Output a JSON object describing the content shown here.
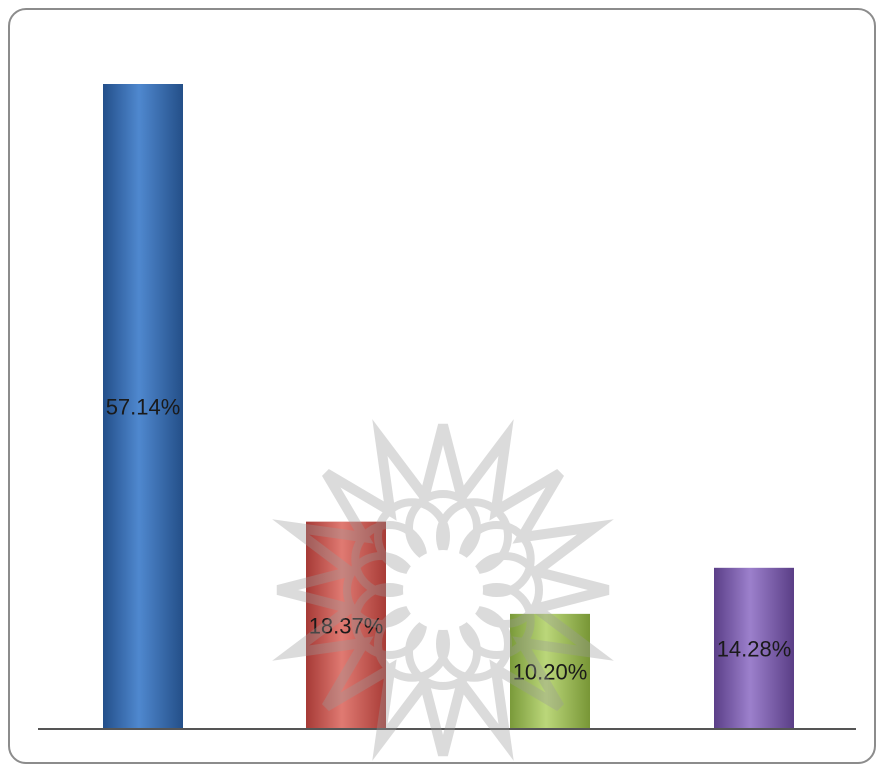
{
  "chart_data": {
    "type": "bar",
    "title": "",
    "xlabel": "",
    "ylabel": "",
    "categories": [
      "",
      "",
      "",
      ""
    ],
    "values": [
      57.14,
      18.37,
      10.2,
      14.28
    ],
    "labels": [
      "57.14%",
      "18.37%",
      "10.20%",
      "14.28%"
    ],
    "colors": [
      "#3f74b8",
      "#c9504a",
      "#9bbb55",
      "#7b5ca8"
    ],
    "ylim": [
      0,
      57.14
    ],
    "grid": false,
    "legend": "none"
  }
}
